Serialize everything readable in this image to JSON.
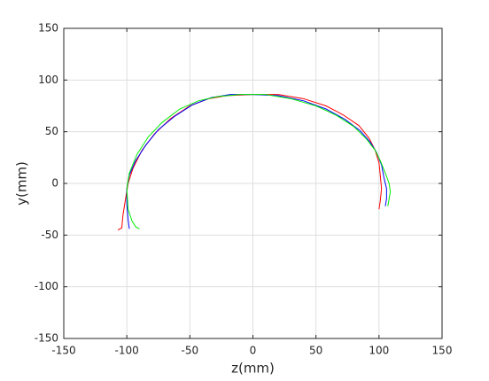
{
  "chart_data": {
    "type": "line",
    "x_label": "z(mm)",
    "y_label": "y(mm)",
    "xlim": [
      -150,
      150
    ],
    "ylim": [
      -150,
      150
    ],
    "xticks": [
      -150,
      -100,
      -50,
      0,
      50,
      100,
      150
    ],
    "yticks": [
      -150,
      -100,
      -50,
      0,
      50,
      100,
      150
    ],
    "grid": true,
    "series": [
      {
        "color": "#ff0000",
        "x": [
          -107,
          -104,
          -103,
          -101,
          -99,
          -95,
          -88,
          -78,
          -65,
          -50,
          -35,
          -20,
          0,
          20,
          40,
          58,
          72,
          84,
          92,
          97,
          100,
          101,
          102,
          101,
          100
        ],
        "values": [
          -45,
          -43,
          -30,
          -15,
          0,
          15,
          32,
          48,
          63,
          75,
          82,
          85,
          86,
          86,
          82,
          75,
          66,
          56,
          44,
          32,
          20,
          8,
          -5,
          -17,
          -25
        ]
      },
      {
        "color": "#0000ff",
        "x": [
          -98,
          -99,
          -100,
          -100,
          -98,
          -93,
          -85,
          -75,
          -62,
          -48,
          -33,
          -18,
          0,
          20,
          40,
          58,
          73,
          85,
          93,
          98,
          102,
          104,
          106,
          106,
          105
        ],
        "values": [
          -44,
          -35,
          -20,
          -5,
          8,
          22,
          37,
          52,
          65,
          76,
          83,
          86,
          86,
          85,
          80,
          72,
          62,
          51,
          40,
          30,
          18,
          5,
          -5,
          -15,
          -22
        ]
      },
      {
        "color": "#00ee00",
        "x": [
          -90,
          -93,
          -96,
          -99,
          -100,
          -98,
          -92,
          -83,
          -72,
          -58,
          -43,
          -28,
          -10,
          10,
          30,
          50,
          66,
          80,
          90,
          97,
          101,
          105,
          108,
          109,
          108,
          107
        ],
        "values": [
          -44,
          -42,
          -36,
          -25,
          -5,
          10,
          28,
          45,
          59,
          72,
          80,
          84,
          86,
          86,
          82,
          75,
          66,
          55,
          43,
          32,
          22,
          10,
          0,
          -8,
          -15,
          -22
        ]
      }
    ]
  }
}
